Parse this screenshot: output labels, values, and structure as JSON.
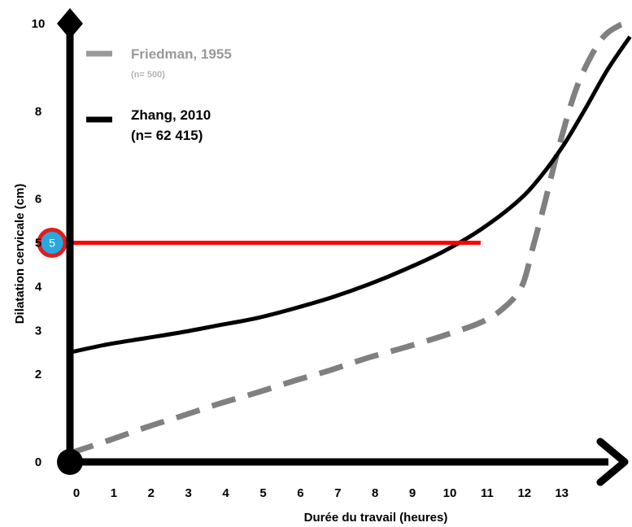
{
  "chart_data": {
    "type": "line",
    "xlabel": "Durée du travail (heures)",
    "ylabel": "Dilatation cervicale (cm)",
    "x_ticks": [
      "0",
      "1",
      "2",
      "3",
      "4",
      "5",
      "6",
      "7",
      "8",
      "9",
      "10",
      "11",
      "12",
      "13"
    ],
    "y_ticks": [
      "0",
      "2",
      "3",
      "4",
      "5",
      "6",
      "8",
      "10"
    ],
    "xlim": [
      0,
      15
    ],
    "ylim": [
      0,
      10
    ],
    "series": [
      {
        "name": "Friedman, 1955",
        "sample": "(n= 500)",
        "color": "#808080",
        "style": "dashed",
        "x": [
          0,
          1,
          2,
          3,
          4,
          5,
          6,
          7,
          8,
          9,
          10,
          11,
          11.6,
          12.1,
          12.4,
          12.7,
          13.1,
          13.6,
          14.2,
          14.7,
          15
        ],
        "y": [
          0.2,
          0.48,
          0.78,
          1.05,
          1.33,
          1.58,
          1.85,
          2.1,
          2.38,
          2.62,
          2.88,
          3.18,
          3.5,
          4.0,
          4.9,
          5.85,
          7.2,
          8.6,
          9.6,
          9.95,
          10.0
        ]
      },
      {
        "name": "Zhang, 2010",
        "sample": "(n= 62 415)",
        "color": "#000000",
        "style": "solid",
        "x": [
          0,
          1,
          2,
          3,
          4,
          5,
          6,
          7,
          8,
          9,
          10,
          11,
          12,
          12.6,
          13.2,
          13.8,
          14.4,
          15
        ],
        "y": [
          2.5,
          2.68,
          2.82,
          2.96,
          3.12,
          3.28,
          3.5,
          3.75,
          4.05,
          4.4,
          4.8,
          5.3,
          5.95,
          6.5,
          7.2,
          8.05,
          8.95,
          9.7
        ]
      }
    ],
    "reference": {
      "label": "5",
      "y": 5,
      "x_end": 11,
      "line_color": "#ff0000",
      "marker_fill": "#29a8e0",
      "marker_stroke": "#e01e1e"
    },
    "legend_position": "top-left"
  }
}
